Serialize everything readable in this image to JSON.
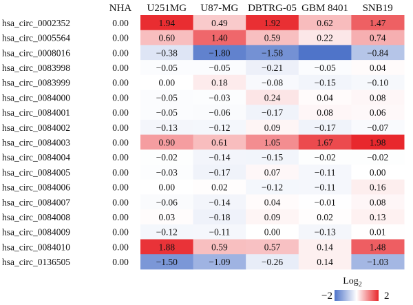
{
  "chart_data": {
    "type": "heatmap",
    "columns": [
      "NHA",
      "U251MG",
      "U87-MG",
      "DBTRG-05",
      "GBM 8401",
      "SNB19"
    ],
    "rows": [
      "hsa_circ_0002352",
      "hsa_circ_0005564",
      "hsa_circ_0008016",
      "hsa_circ_0083998",
      "hsa_circ_0083999",
      "hsa_circ_0084000",
      "hsa_circ_0084001",
      "hsa_circ_0084002",
      "hsa_circ_0084003",
      "hsa_circ_0084004",
      "hsa_circ_0084005",
      "hsa_circ_0084006",
      "hsa_circ_0084007",
      "hsa_circ_0084008",
      "hsa_circ_0084009",
      "hsa_circ_0084010",
      "hsa_circ_0136505"
    ],
    "values": [
      [
        0.0,
        1.94,
        0.49,
        1.92,
        0.62,
        1.47
      ],
      [
        0.0,
        0.6,
        1.4,
        0.59,
        0.22,
        0.74
      ],
      [
        0.0,
        -0.38,
        -1.8,
        -1.58,
        null,
        -0.84
      ],
      [
        0.0,
        -0.05,
        -0.05,
        -0.21,
        -0.05,
        0.04
      ],
      [
        0.0,
        0.0,
        0.18,
        -0.08,
        -0.15,
        -0.1
      ],
      [
        0.0,
        -0.05,
        -0.03,
        0.24,
        0.04,
        0.08
      ],
      [
        0.0,
        -0.05,
        -0.06,
        -0.17,
        0.08,
        0.06
      ],
      [
        0.0,
        -0.13,
        -0.12,
        0.09,
        -0.17,
        -0.07
      ],
      [
        0.0,
        0.9,
        0.61,
        1.05,
        1.67,
        1.98
      ],
      [
        0.0,
        -0.02,
        -0.14,
        -0.15,
        -0.02,
        -0.02
      ],
      [
        0.0,
        -0.03,
        -0.17,
        0.07,
        -0.11,
        0.0
      ],
      [
        0.0,
        0.0,
        0.02,
        -0.12,
        -0.11,
        0.16
      ],
      [
        0.0,
        -0.06,
        -0.14,
        0.04,
        -0.01,
        0.08
      ],
      [
        0.0,
        0.03,
        -0.18,
        0.09,
        0.02,
        0.13
      ],
      [
        0.0,
        -0.12,
        -0.11,
        0.0,
        -0.13,
        0.01
      ],
      [
        0.0,
        1.88,
        0.59,
        0.57,
        0.14,
        1.48
      ],
      [
        0.0,
        -1.5,
        -1.09,
        -0.26,
        0.14,
        -1.03
      ]
    ],
    "value_labels": [
      [
        "0.00",
        "1.94",
        "0.49",
        "1.92",
        "0.62",
        "1.47"
      ],
      [
        "0.00",
        "0.60",
        "1.40",
        "0.59",
        "0.22",
        "0.74"
      ],
      [
        "0.00",
        "−0.38",
        "−1.80",
        "−1.58",
        "",
        "−0.84"
      ],
      [
        "0.00",
        "−0.05",
        "−0.05",
        "−0.21",
        "−0.05",
        "0.04"
      ],
      [
        "0.00",
        "0.00",
        "0.18",
        "−0.08",
        "−0.15",
        "−0.10"
      ],
      [
        "0.00",
        "−0.05",
        "−0.03",
        "0.24",
        "0.04",
        "0.08"
      ],
      [
        "0.00",
        "−0.05",
        "−0.06",
        "−0.17",
        "0.08",
        "0.06"
      ],
      [
        "0.00",
        "−0.13",
        "−0.12",
        "0.09",
        "−0.17",
        "−0.07"
      ],
      [
        "0.00",
        "0.90",
        "0.61",
        "1.05",
        "1.67",
        "1.98"
      ],
      [
        "0.00",
        "−0.02",
        "−0.14",
        "−0.15",
        "−0.02",
        "−0.02"
      ],
      [
        "0.00",
        "−0.03",
        "−0.17",
        "0.07",
        "−0.11",
        "0.00"
      ],
      [
        "0.00",
        "0.00",
        "0.02",
        "−0.12",
        "−0.11",
        "0.16"
      ],
      [
        "0.00",
        "−0.06",
        "−0.14",
        "0.04",
        "−0.01",
        "0.08"
      ],
      [
        "0.00",
        "0.03",
        "−0.18",
        "0.09",
        "0.02",
        "0.13"
      ],
      [
        "0.00",
        "−0.12",
        "−0.11",
        "0.00",
        "−0.13",
        "0.01"
      ],
      [
        "0.00",
        "1.88",
        "0.59",
        "0.57",
        "0.14",
        "1.48"
      ],
      [
        "0.00",
        "−1.50",
        "−1.09",
        "−0.26",
        "0.14",
        "−1.03"
      ]
    ],
    "colored_columns": [
      1,
      2,
      3,
      4,
      5
    ],
    "color_scale": {
      "min": -2,
      "max": 2,
      "low_color": "#4f74c9",
      "mid_color": "#ffffff",
      "high_color": "#e8262b",
      "title": "Log",
      "title_subscript": "2",
      "min_label": "−2",
      "max_label": "2"
    },
    "legend_placement": "bottom-right"
  }
}
